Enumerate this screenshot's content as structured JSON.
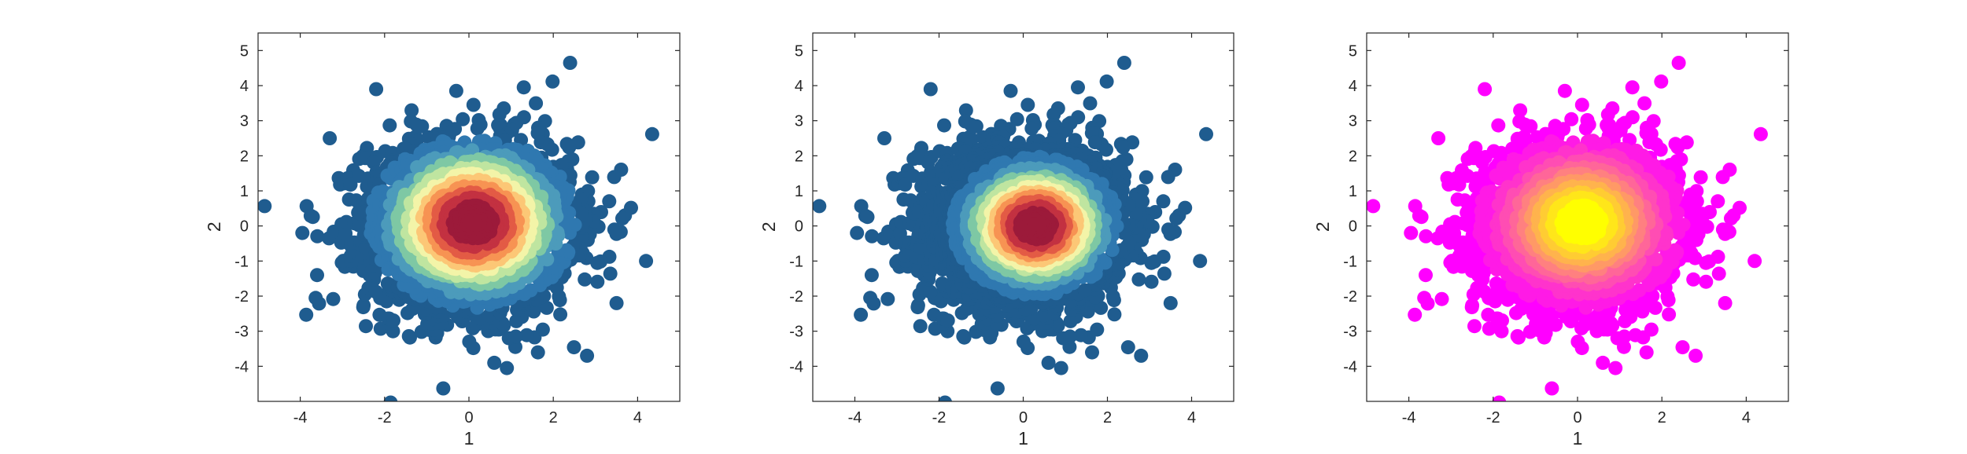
{
  "chart_data": [
    {
      "type": "scatter",
      "colormap": "spectral",
      "xlabel": "1",
      "ylabel": "2",
      "xlim": [
        -5,
        5
      ],
      "ylim": [
        -5,
        5.5
      ],
      "x_ticks": [
        -4,
        -2,
        0,
        2,
        4
      ],
      "y_ticks": [
        -4,
        -3,
        -2,
        -1,
        0,
        1,
        2,
        3,
        4,
        5
      ],
      "density_center": [
        0.1,
        0.1
      ],
      "spread": [
        1.05,
        1.05
      ],
      "colors": [
        "#1f5c8f",
        "#2f78b0",
        "#4c9bbb",
        "#7ec8a4",
        "#bfe5a0",
        "#f3f4a8",
        "#fcc776",
        "#f79353",
        "#e35b45",
        "#c33141",
        "#9c1a3a"
      ],
      "outliers": [
        [
          2.4,
          4.65
        ],
        [
          -2.2,
          3.9
        ],
        [
          1.3,
          3.95
        ],
        [
          -0.3,
          3.85
        ],
        [
          2.8,
          -3.7
        ],
        [
          4.2,
          -1.0
        ],
        [
          -3.95,
          -0.2
        ],
        [
          0.9,
          -4.05
        ],
        [
          -3.6,
          -1.4
        ],
        [
          3.5,
          -2.2
        ],
        [
          -1.8,
          -3.0
        ],
        [
          0.6,
          -3.9
        ],
        [
          3.7,
          0.3
        ],
        [
          -3.3,
          2.5
        ]
      ]
    },
    {
      "type": "scatter",
      "colormap": "spectral",
      "xlabel": "1",
      "ylabel": "2",
      "xlim": [
        -5,
        5
      ],
      "ylim": [
        -5,
        5.5
      ],
      "x_ticks": [
        -4,
        -2,
        0,
        2,
        4
      ],
      "y_ticks": [
        -4,
        -3,
        -2,
        -1,
        0,
        1,
        2,
        3,
        4,
        5
      ],
      "density_center": [
        0.3,
        0.0
      ],
      "spread": [
        0.85,
        0.85
      ],
      "colors": [
        "#1f5c8f",
        "#2f78b0",
        "#4c9bbb",
        "#7ec8a4",
        "#bfe5a0",
        "#f3f4a8",
        "#fcc776",
        "#f79353",
        "#e35b45",
        "#c33141",
        "#9c1a3a"
      ],
      "outliers": [
        [
          2.4,
          4.65
        ],
        [
          -2.2,
          3.9
        ],
        [
          1.3,
          3.95
        ],
        [
          -0.3,
          3.85
        ],
        [
          2.8,
          -3.7
        ],
        [
          4.2,
          -1.0
        ],
        [
          -3.95,
          -0.2
        ],
        [
          0.9,
          -4.05
        ],
        [
          -3.6,
          -1.4
        ],
        [
          3.5,
          -2.2
        ],
        [
          -1.8,
          -3.0
        ],
        [
          0.6,
          -3.9
        ],
        [
          3.7,
          0.3
        ],
        [
          -3.3,
          2.5
        ]
      ]
    },
    {
      "type": "scatter",
      "colormap": "spring",
      "xlabel": "1",
      "ylabel": "2",
      "xlim": [
        -5,
        5
      ],
      "ylim": [
        -5,
        5.5
      ],
      "x_ticks": [
        -4,
        -2,
        0,
        2,
        4
      ],
      "y_ticks": [
        -4,
        -3,
        -2,
        -1,
        0,
        1,
        2,
        3,
        4,
        5
      ],
      "density_center": [
        0.1,
        0.1
      ],
      "spread": [
        1.05,
        1.05
      ],
      "colors": [
        "#ff00ff",
        "#ff1ae6",
        "#ff33cc",
        "#ff4db3",
        "#ff6699",
        "#ff8080",
        "#ff9966",
        "#ffb34d",
        "#ffcc33",
        "#ffe61a",
        "#ffff00"
      ],
      "outliers": [
        [
          2.4,
          4.65
        ],
        [
          -2.2,
          3.9
        ],
        [
          1.3,
          3.95
        ],
        [
          -0.3,
          3.85
        ],
        [
          2.8,
          -3.7
        ],
        [
          4.2,
          -1.0
        ],
        [
          -3.95,
          -0.2
        ],
        [
          0.9,
          -4.05
        ],
        [
          -3.6,
          -1.4
        ],
        [
          3.5,
          -2.2
        ],
        [
          -1.8,
          -3.0
        ],
        [
          0.6,
          -3.9
        ],
        [
          3.7,
          0.3
        ],
        [
          -3.3,
          2.5
        ]
      ]
    }
  ]
}
